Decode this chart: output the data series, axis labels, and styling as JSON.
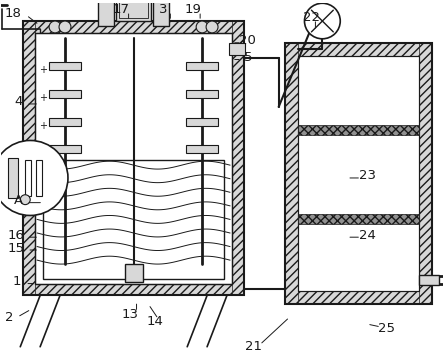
{
  "background_color": "#ffffff",
  "line_color": "#1a1a1a",
  "gray_fill": "#b0b0b0",
  "hatch_gray": "#909090",
  "light_gray": "#d8d8d8",
  "dark_gray": "#707070",
  "figsize": [
    4.44,
    3.58
  ],
  "dpi": 100
}
